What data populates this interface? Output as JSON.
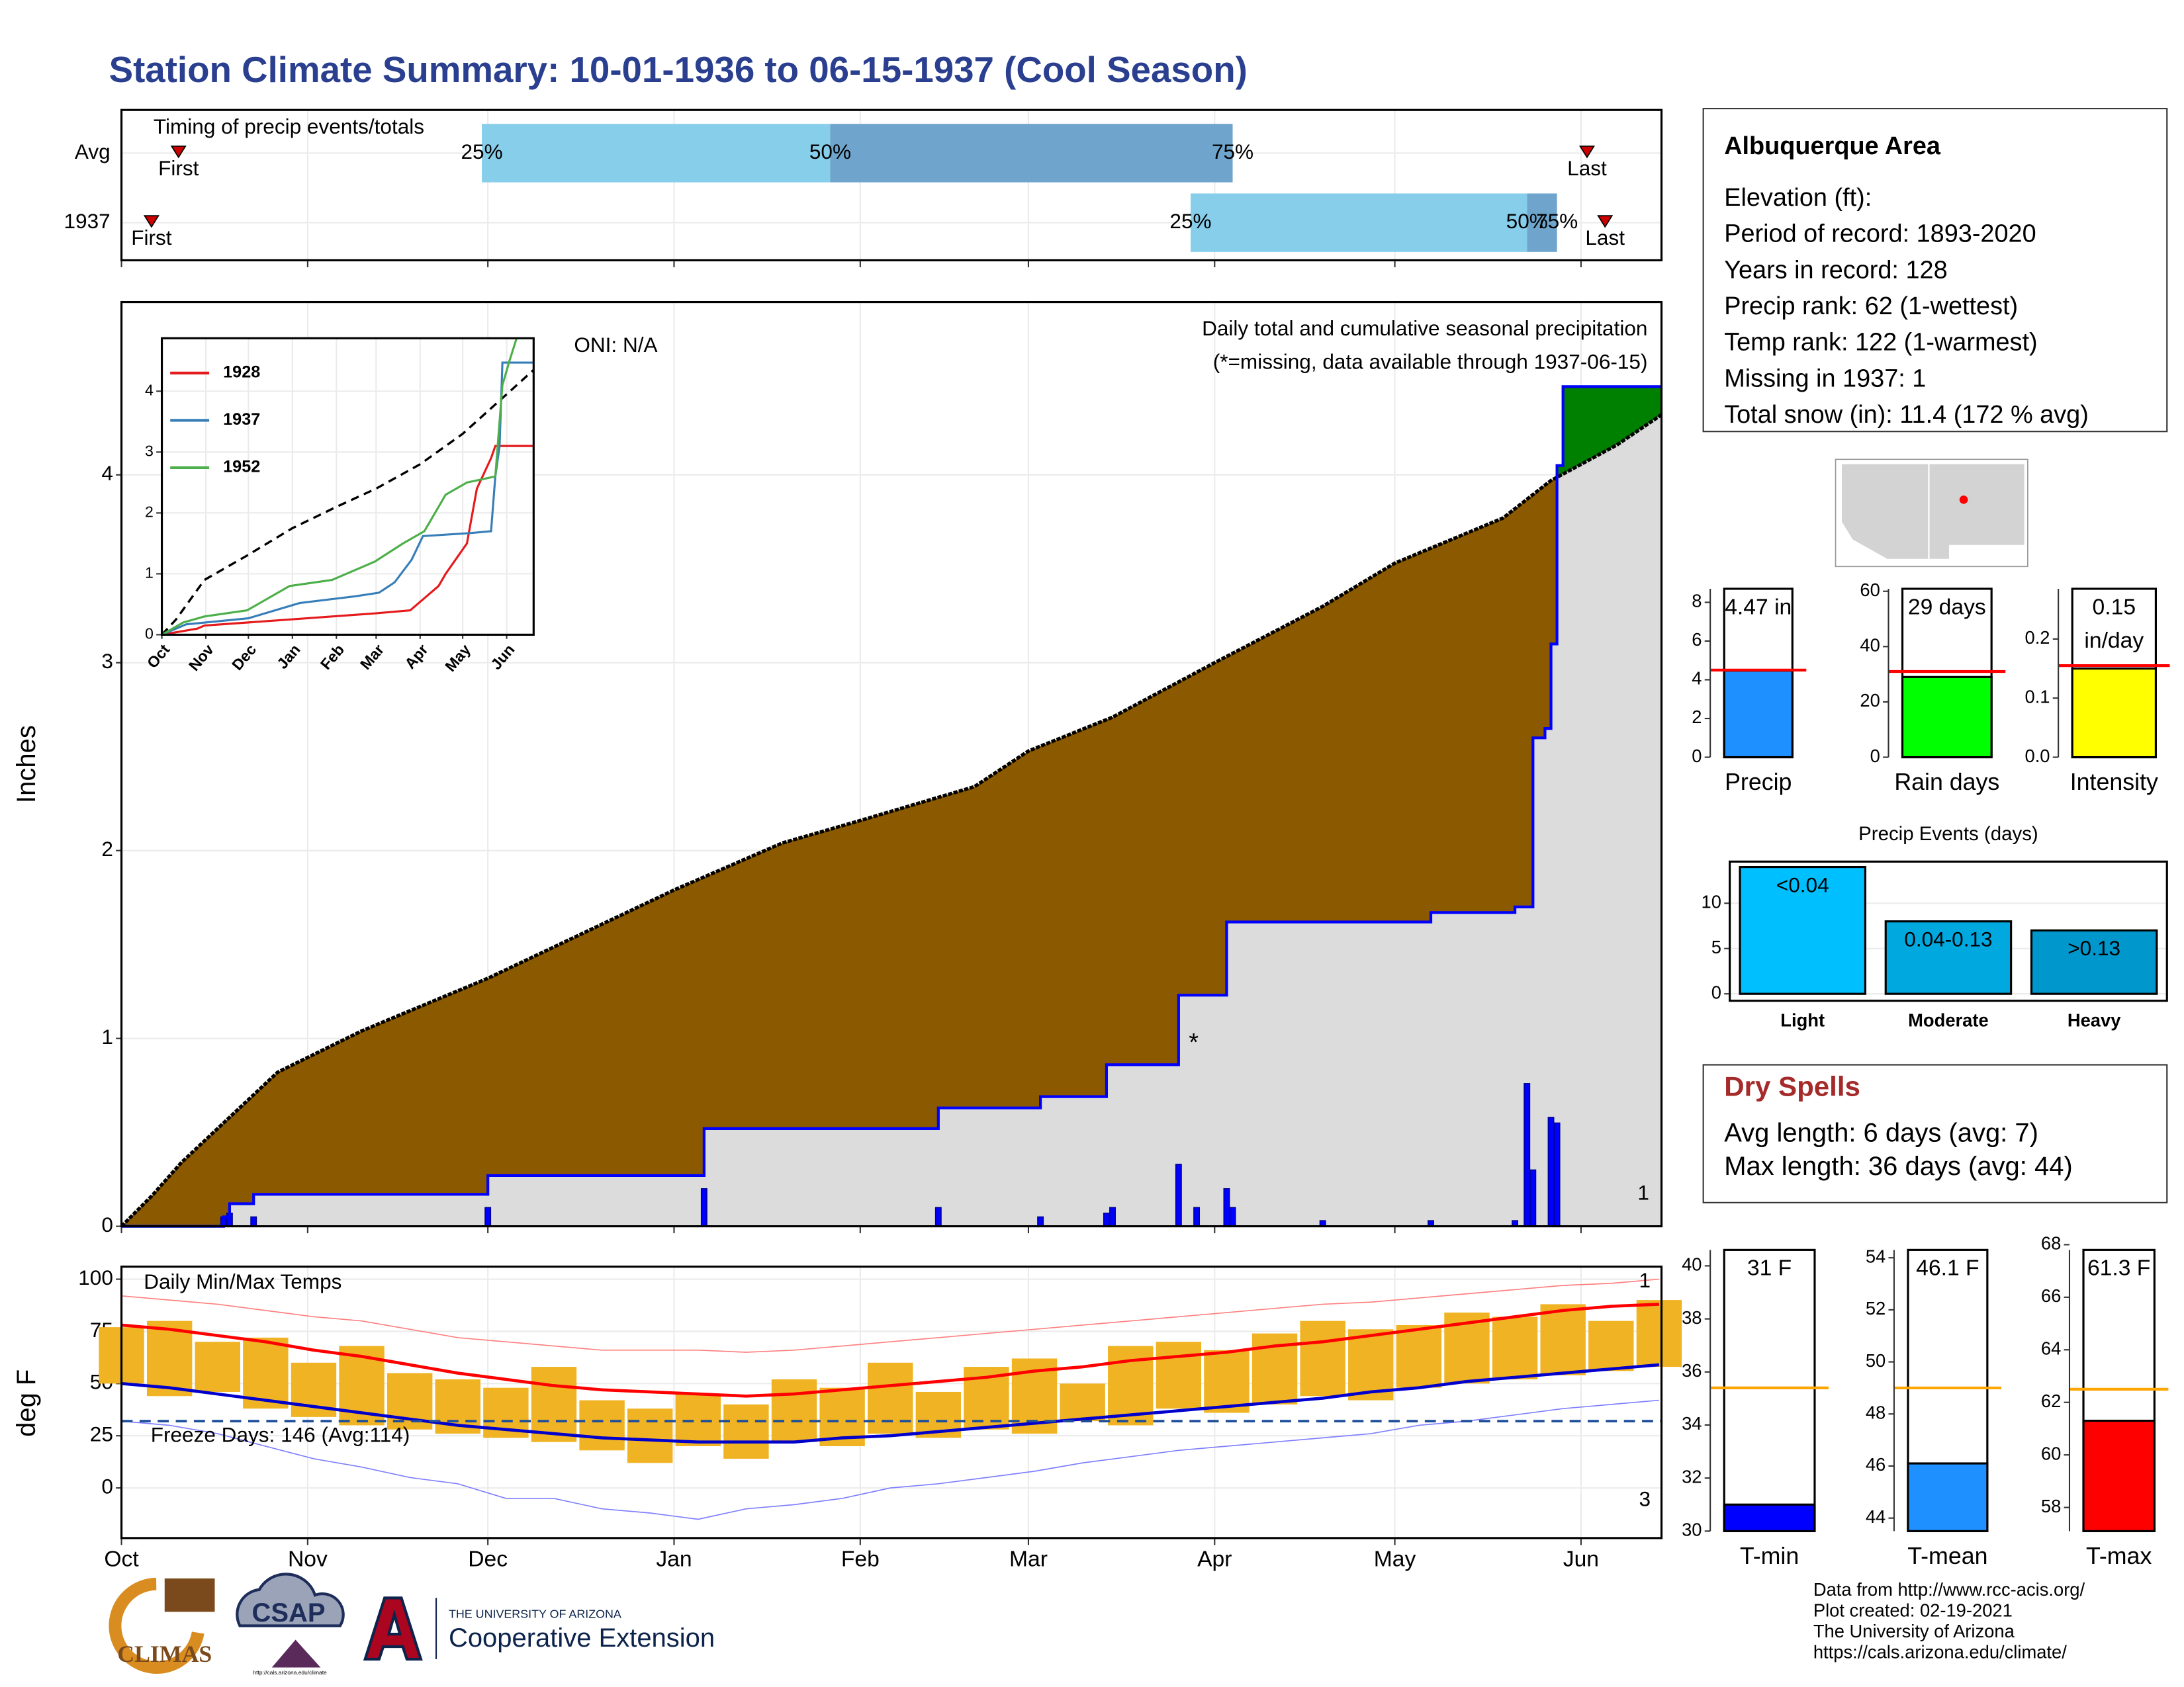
{
  "title": "Station Climate Summary: 10-01-1936 to 06-15-1937 (Cool Season)",
  "chart_data": [
    {
      "type": "timing",
      "title": "Timing of precip events/totals",
      "xlim": [
        0,
        256.4
      ],
      "xticks": [
        0,
        31,
        61,
        92,
        123,
        151,
        182,
        212,
        243
      ],
      "colors": [
        "#87ceeb",
        "#6fa5cc"
      ],
      "marker_color": "#cc0000",
      "labels": {
        "first": "First",
        "last": "Last",
        "q25": "25%",
        "q50": "50%",
        "q75": "75%"
      },
      "rows": [
        {
          "name": "Avg",
          "first": 9.5,
          "q25": 60,
          "q50": 118,
          "q75": 185,
          "last": 244
        },
        {
          "name": "1937",
          "first": 5,
          "q25": 178,
          "q50": 234,
          "q75": 239,
          "last": 247
        }
      ]
    },
    {
      "type": "cumulative",
      "title": "Daily total and cumulative seasonal precipitation",
      "subtitle": "(*=missing, data available through 1937-06-15)",
      "annotation": "ONI: N/A",
      "missing_label": "*",
      "corner_label": "1",
      "y_label": "Inches",
      "xlim": [
        0,
        256.4
      ],
      "ylim": [
        0,
        4.92
      ],
      "yticks": [
        0,
        1,
        2,
        3,
        4
      ],
      "xticks": [
        0,
        31,
        61,
        92,
        123,
        151,
        182,
        212,
        243
      ],
      "grid": true,
      "deficit_color": "#8b5a00",
      "excess_color": "#008000",
      "below_color": "#dcdcdc",
      "average": {
        "x": [
          0,
          5,
          10,
          15,
          26,
          40,
          61,
          92,
          110,
          123,
          142,
          151,
          165,
          182,
          200,
          212,
          230,
          238,
          249,
          256.4
        ],
        "values": [
          0,
          0.16,
          0.34,
          0.49,
          0.82,
          1.04,
          1.32,
          1.79,
          2.04,
          2.16,
          2.34,
          2.53,
          2.71,
          3.0,
          3.3,
          3.53,
          3.77,
          3.97,
          4.16,
          4.32
        ]
      },
      "observed": {
        "color": "#0000ff",
        "x": [
          0,
          17,
          17,
          18,
          18,
          22,
          22,
          61,
          61,
          97,
          97,
          136,
          136,
          153,
          153,
          164,
          164,
          176,
          176,
          184,
          184,
          218,
          218,
          232,
          232,
          235,
          235,
          237,
          237,
          238,
          238,
          239,
          239,
          240,
          240,
          256.4
        ],
        "values": [
          0,
          0,
          0.05,
          0.05,
          0.12,
          0.12,
          0.17,
          0.17,
          0.27,
          0.27,
          0.52,
          0.52,
          0.63,
          0.63,
          0.69,
          0.69,
          0.86,
          0.86,
          1.23,
          1.23,
          1.62,
          1.62,
          1.67,
          1.67,
          1.7,
          1.7,
          2.6,
          2.6,
          2.65,
          2.65,
          3.1,
          3.1,
          4.05,
          4.05,
          4.47,
          4.47
        ]
      },
      "daily": {
        "color": "#0000ff",
        "x": [
          17,
          18,
          22,
          61,
          97,
          136,
          153,
          164,
          165,
          176,
          179,
          184,
          185,
          200,
          218,
          232,
          234,
          235,
          238,
          239
        ],
        "values": [
          0.05,
          0.07,
          0.05,
          0.1,
          0.2,
          0.1,
          0.05,
          0.07,
          0.1,
          0.33,
          0.1,
          0.2,
          0.1,
          0.03,
          0.03,
          0.03,
          0.76,
          0.3,
          0.58,
          0.55
        ]
      }
    },
    {
      "type": "line",
      "xlim": [
        0,
        262
      ],
      "ylim": [
        0,
        4.87
      ],
      "yticks": [
        0,
        1,
        2,
        3,
        4
      ],
      "grid": true,
      "xticks": [
        {
          "value": 0,
          "label": "Oct"
        },
        {
          "value": 31,
          "label": "Nov"
        },
        {
          "value": 61,
          "label": "Dec"
        },
        {
          "value": 92,
          "label": "Jan"
        },
        {
          "value": 123,
          "label": "Feb"
        },
        {
          "value": 151,
          "label": "Mar"
        },
        {
          "value": 182,
          "label": "Apr"
        },
        {
          "value": 212,
          "label": "May"
        },
        {
          "value": 243,
          "label": "Jun"
        }
      ],
      "average": {
        "color": "#000000",
        "x": [
          0,
          10,
          30,
          60,
          92,
          123,
          151,
          182,
          212,
          243,
          262
        ],
        "values": [
          0,
          0.25,
          0.9,
          1.3,
          1.75,
          2.1,
          2.4,
          2.8,
          3.3,
          3.95,
          4.35
        ]
      },
      "series": [
        {
          "name": "1928",
          "color": "#e41a1c",
          "x": [
            0,
            25,
            30,
            60,
            90,
            120,
            150,
            175,
            180,
            195,
            200,
            215,
            222,
            232,
            235,
            262
          ],
          "values": [
            0,
            0.1,
            0.15,
            0.2,
            0.25,
            0.3,
            0.35,
            0.4,
            0.5,
            0.8,
            1.0,
            1.5,
            2.4,
            2.9,
            3.1,
            3.1
          ]
        },
        {
          "name": "1937",
          "color": "#377eb8",
          "x": [
            0,
            17,
            61,
            97,
            136,
            153,
            164,
            176,
            184,
            218,
            232,
            235,
            238,
            240,
            262
          ],
          "values": [
            0,
            0.17,
            0.27,
            0.52,
            0.63,
            0.69,
            0.86,
            1.23,
            1.62,
            1.67,
            1.7,
            2.6,
            3.1,
            4.47,
            4.47
          ]
        },
        {
          "name": "1952",
          "color": "#4daf4a",
          "x": [
            0,
            15,
            30,
            60,
            90,
            120,
            150,
            170,
            185,
            200,
            215,
            235,
            240,
            245,
            250
          ],
          "values": [
            0,
            0.2,
            0.3,
            0.4,
            0.8,
            0.9,
            1.2,
            1.5,
            1.7,
            2.3,
            2.5,
            2.6,
            4.1,
            4.5,
            4.87
          ]
        }
      ]
    },
    {
      "type": "temperature",
      "title": "Daily Min/Max Temps",
      "y_label": "deg F",
      "freeze": 32,
      "freeze_label": "Freeze Days: 146 (Avg:114)",
      "max_corner_label": "1",
      "min_corner_label": "3",
      "xlim": [
        0,
        256.4
      ],
      "ylim": [
        -24,
        106
      ],
      "yticks": [
        0,
        25,
        50,
        75,
        100
      ],
      "grid": true,
      "xticks": [
        {
          "value": 0,
          "label": "Oct"
        },
        {
          "value": 31,
          "label": "Nov"
        },
        {
          "value": 61,
          "label": "Dec"
        },
        {
          "value": 92,
          "label": "Jan"
        },
        {
          "value": 123,
          "label": "Feb"
        },
        {
          "value": 151,
          "label": "Mar"
        },
        {
          "value": 182,
          "label": "Apr"
        },
        {
          "value": 212,
          "label": "May"
        },
        {
          "value": 243,
          "label": "Jun"
        }
      ],
      "bar_color": "#f0b323",
      "colors": {
        "record_max": "#ff8080",
        "avg_max": "#ff0000",
        "avg_min": "#0000cc",
        "record_min": "#8080ff",
        "freeze": "#1f4e9a"
      },
      "x": [
        0,
        8,
        16,
        24,
        32,
        40,
        48,
        56,
        64,
        72,
        80,
        88,
        96,
        104,
        112,
        120,
        128,
        136,
        144,
        152,
        160,
        168,
        176,
        184,
        192,
        200,
        208,
        216,
        224,
        232,
        240,
        248,
        256
      ],
      "record_max": [
        92,
        90,
        88,
        85,
        82,
        80,
        76,
        72,
        70,
        68,
        66,
        66,
        66,
        65,
        66,
        68,
        70,
        72,
        74,
        76,
        78,
        80,
        82,
        84,
        86,
        88,
        89,
        91,
        93,
        95,
        97,
        98,
        100
      ],
      "avg_max": [
        78,
        76,
        73,
        70,
        66,
        63,
        59,
        55,
        52,
        49,
        47,
        46,
        45,
        44,
        45,
        47,
        49,
        51,
        53,
        56,
        58,
        61,
        63,
        65,
        68,
        70,
        73,
        76,
        79,
        82,
        85,
        87,
        88
      ],
      "observed_max": [
        77,
        80,
        70,
        72,
        60,
        68,
        55,
        52,
        48,
        58,
        42,
        38,
        45,
        40,
        52,
        48,
        60,
        46,
        58,
        62,
        50,
        68,
        70,
        66,
        74,
        80,
        76,
        78,
        84,
        82,
        88,
        80,
        90
      ],
      "observed_min": [
        50,
        44,
        46,
        38,
        34,
        30,
        28,
        26,
        24,
        22,
        18,
        12,
        20,
        14,
        22,
        20,
        26,
        24,
        28,
        26,
        32,
        30,
        38,
        36,
        40,
        44,
        42,
        48,
        50,
        52,
        54,
        56,
        58
      ],
      "avg_min": [
        50,
        48,
        45,
        42,
        39,
        36,
        33,
        30,
        28,
        26,
        24,
        23,
        22,
        22,
        22,
        24,
        25,
        27,
        29,
        31,
        33,
        35,
        37,
        39,
        41,
        43,
        46,
        48,
        51,
        53,
        55,
        57,
        59
      ],
      "record_min": [
        32,
        30,
        26,
        20,
        14,
        10,
        5,
        2,
        -5,
        -5,
        -10,
        -12,
        -15,
        -10,
        -8,
        -5,
        0,
        2,
        5,
        8,
        12,
        15,
        18,
        20,
        22,
        24,
        26,
        30,
        32,
        35,
        38,
        40,
        42
      ]
    },
    {
      "type": "stat",
      "categories": [
        "Precip"
      ],
      "values": [
        4.47
      ],
      "value_labels": [
        "4.47 in"
      ],
      "average": 4.5,
      "color": "#1e90ff",
      "average_color": "#ff0000",
      "ylim": [
        0,
        8.7
      ],
      "yticks": [
        0,
        2,
        4,
        6,
        8
      ]
    },
    {
      "type": "stat",
      "categories": [
        "Rain days"
      ],
      "values": [
        29
      ],
      "value_labels": [
        "29 days"
      ],
      "average": 31,
      "color": "#00ff00",
      "average_color": "#ff0000",
      "ylim": [
        0,
        60.9
      ],
      "yticks": [
        0,
        20,
        40,
        60
      ]
    },
    {
      "type": "stat",
      "categories": [
        "Intensity"
      ],
      "values": [
        0.15
      ],
      "value_labels": [
        "0.15\nin/day"
      ],
      "average": 0.155,
      "color": "#ffff00",
      "average_color": "#ff0000",
      "ylim": [
        0,
        0.285
      ],
      "yticks": [
        {
          "value": 0,
          "label": "0.0"
        },
        0.1,
        0.2
      ]
    },
    {
      "type": "bar",
      "title": "Precip Events (days)",
      "categories": [
        "Light",
        "Moderate",
        "Heavy"
      ],
      "values": [
        14,
        8,
        7
      ],
      "value_labels": [
        "<0.04",
        "0.04-0.13",
        ">0.13"
      ],
      "colors": [
        "#00bfff",
        "#00a8e0",
        "#0098cc"
      ],
      "ylim": [
        -0.77,
        14.6
      ],
      "yticks": [
        0,
        5,
        10
      ],
      "grid": true
    },
    {
      "type": "stat",
      "categories": [
        "T-min"
      ],
      "values": [
        31
      ],
      "value_labels": [
        "31 F"
      ],
      "average": 35.4,
      "color": "#0000ff",
      "average_color": "#ffa500",
      "ylim": [
        30,
        40.6
      ],
      "yticks": [
        30,
        32,
        34,
        36,
        38,
        40
      ]
    },
    {
      "type": "stat",
      "categories": [
        "T-mean"
      ],
      "values": [
        46.1
      ],
      "value_labels": [
        "46.1 F"
      ],
      "average": 49,
      "color": "#1e90ff",
      "average_color": "#ffa500",
      "ylim": [
        43.5,
        54.3
      ],
      "yticks": [
        44,
        46,
        48,
        50,
        52,
        54
      ]
    },
    {
      "type": "stat",
      "categories": [
        "T-max"
      ],
      "values": [
        61.3
      ],
      "value_labels": [
        "61.3 F"
      ],
      "average": 62.5,
      "color": "#ff0000",
      "average_color": "#ffa500",
      "ylim": [
        57.1,
        67.8
      ],
      "yticks": [
        58,
        60,
        62,
        64,
        66,
        68
      ]
    }
  ],
  "info": {
    "title": "Albuquerque Area",
    "lines": [
      "Elevation (ft):",
      "Period of record: 1893-2020",
      "Years in record: 128",
      "Precip rank: 62 (1-wettest)",
      "Temp rank: 122 (1-warmest)",
      "Missing in 1937: 1",
      "Total snow (in): 11.4 (172 % avg)"
    ]
  },
  "dry_spells": {
    "title": "Dry Spells",
    "lines": [
      "Avg length: 6 days (avg: 7)",
      "Max length: 36 days (avg: 44)"
    ]
  },
  "footer": [
    "Data from http://www.rcc-acis.org/",
    "Plot created: 02-19-2021",
    "The University of Arizona",
    "https://cals.arizona.edu/climate/"
  ],
  "logos": {
    "climas": "CLIMAS",
    "csap": "CSAP",
    "csap_url": "http://cals.arizona.edu/climate",
    "university": "THE UNIVERSITY OF ARIZONA",
    "extension": "Cooperative Extension"
  }
}
